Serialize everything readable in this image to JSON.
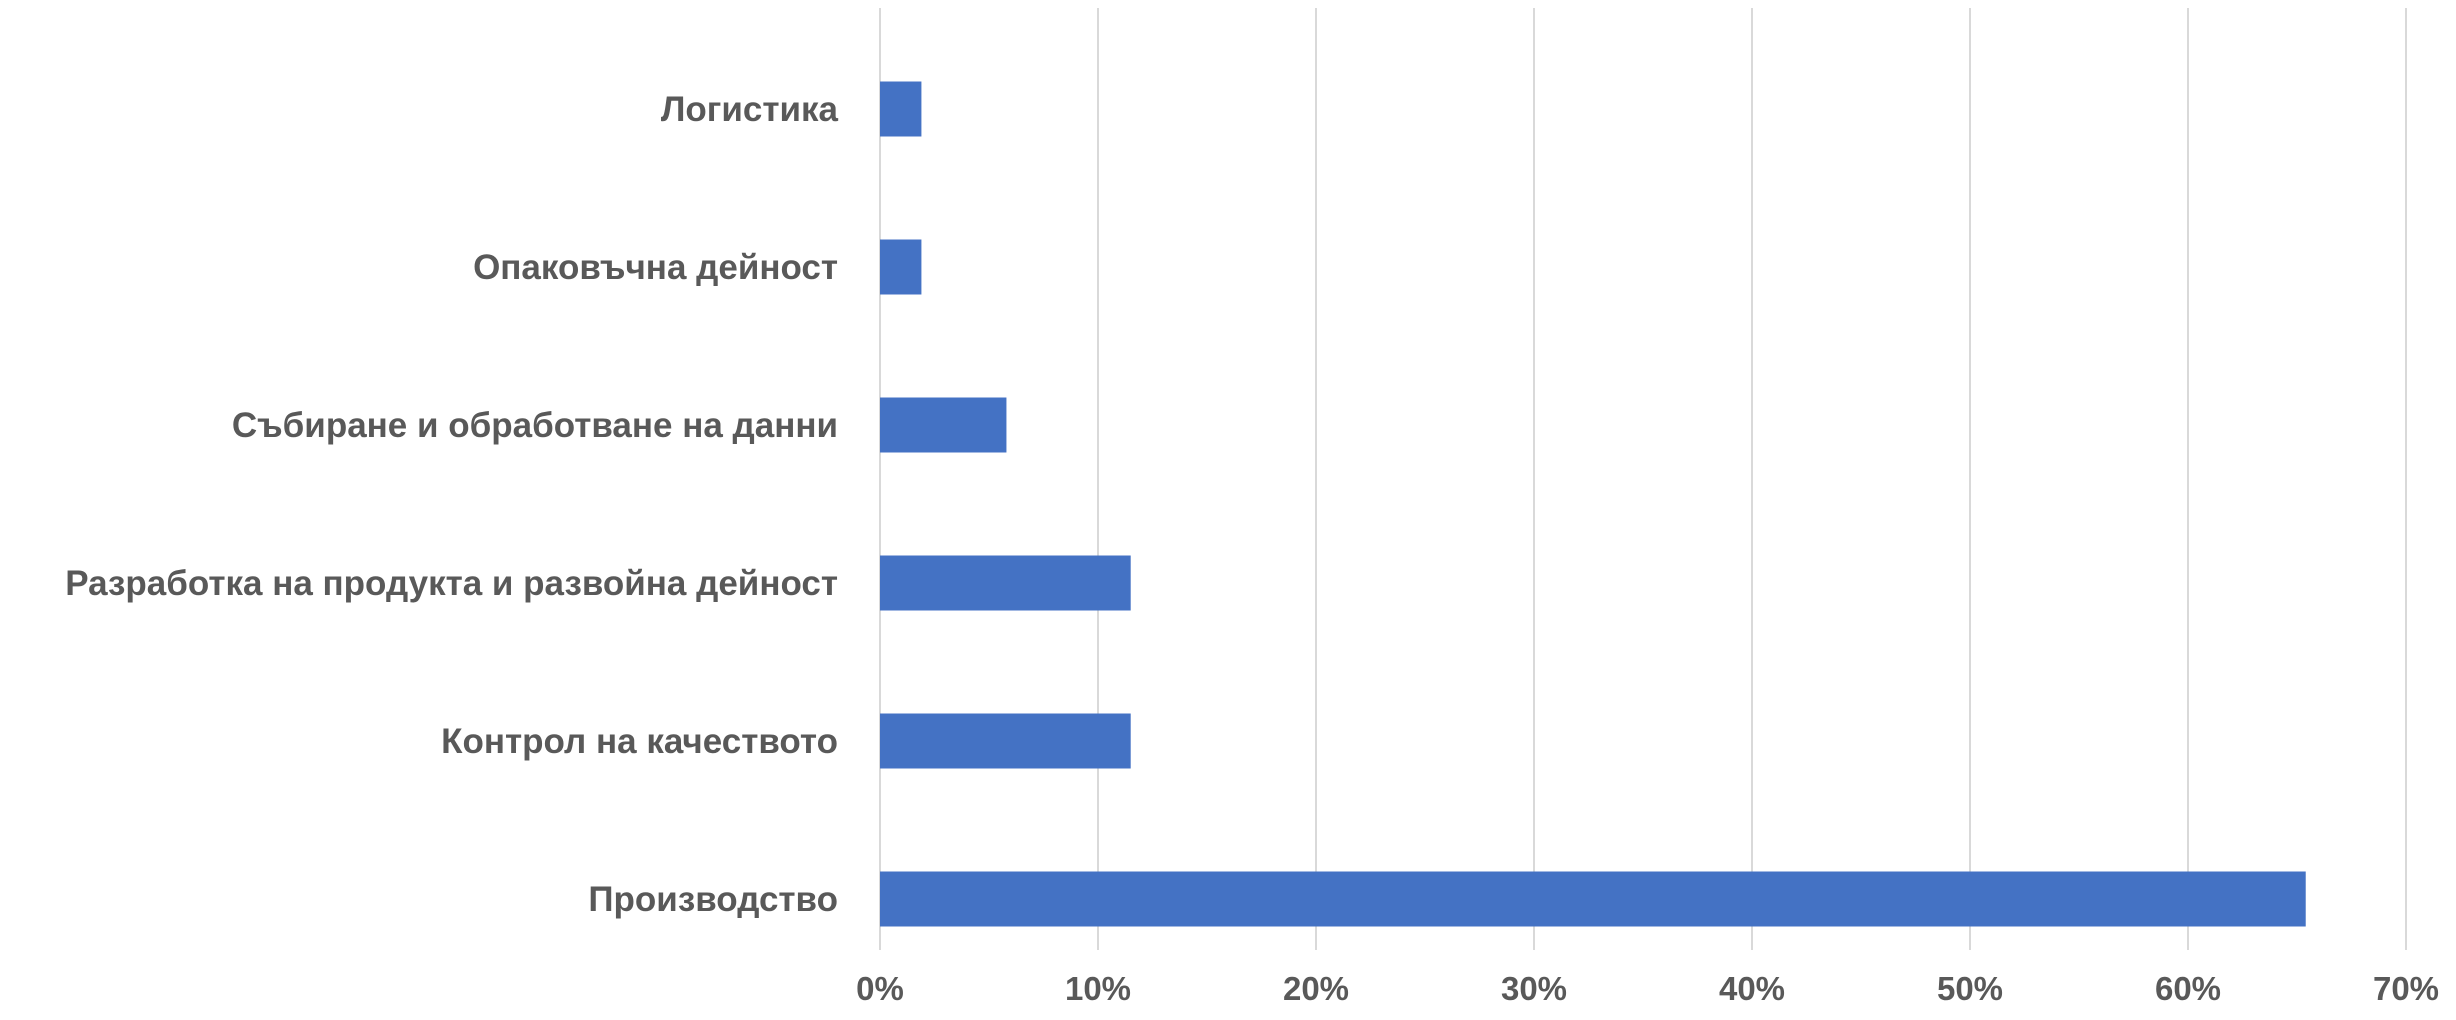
{
  "chart_data": {
    "type": "bar",
    "orientation": "horizontal",
    "categories": [
      "Логистика",
      "Опаковъчна дейност",
      "Събиране и обработване на данни",
      "Разработка на продукта и развойна дейност",
      "Контрол на качеството",
      "Производство"
    ],
    "values": [
      1.9,
      1.9,
      5.8,
      11.5,
      11.5,
      65.4
    ],
    "value_unit": "%",
    "xlim": [
      0,
      70
    ],
    "x_ticks": [
      0,
      10,
      20,
      30,
      40,
      50,
      60,
      70
    ],
    "x_tick_labels": [
      "0%",
      "10%",
      "20%",
      "30%",
      "40%",
      "50%",
      "60%",
      "70%"
    ],
    "title": "",
    "xlabel": "",
    "ylabel": "",
    "grid": "vertical",
    "legend": "none",
    "bar_color": "#4472C4",
    "grid_color": "#D9D9D9",
    "label_color": "#595959"
  }
}
